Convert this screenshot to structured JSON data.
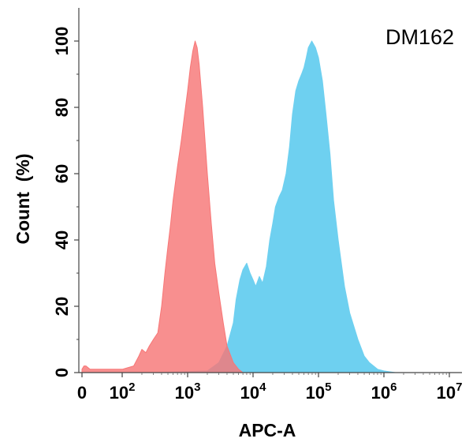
{
  "chart_data": {
    "type": "area",
    "title": "",
    "annotation": "DM162",
    "xlabel": "APC-A",
    "ylabel": "Count  (%)",
    "xscale": "biexponential-log",
    "xlim": [
      0,
      10000000
    ],
    "ylim": [
      0,
      100
    ],
    "grid": false,
    "legend": "none",
    "xticks": [
      {
        "base": "0",
        "exp": ""
      },
      {
        "base": "10",
        "exp": "2"
      },
      {
        "base": "10",
        "exp": "3"
      },
      {
        "base": "10",
        "exp": "4"
      },
      {
        "base": "10",
        "exp": "5"
      },
      {
        "base": "10",
        "exp": "6"
      },
      {
        "base": "10",
        "exp": "7"
      }
    ],
    "yticks": [
      "0",
      "20",
      "40",
      "60",
      "80",
      "100"
    ],
    "series": [
      {
        "color": "#6ed0f0",
        "points": [
          [
            300,
            0
          ],
          [
            2000,
            0.5
          ],
          [
            3000,
            3
          ],
          [
            4000,
            8
          ],
          [
            5000,
            15
          ],
          [
            5500,
            22
          ],
          [
            6300,
            28
          ],
          [
            7000,
            31
          ],
          [
            8000,
            33
          ],
          [
            9000,
            30
          ],
          [
            10000,
            28
          ],
          [
            11000,
            26
          ],
          [
            12500,
            29
          ],
          [
            14000,
            27
          ],
          [
            16000,
            32
          ],
          [
            18000,
            40
          ],
          [
            20000,
            45
          ],
          [
            22000,
            50
          ],
          [
            25000,
            53
          ],
          [
            28000,
            55
          ],
          [
            32000,
            60
          ],
          [
            36000,
            68
          ],
          [
            40000,
            78
          ],
          [
            45000,
            85
          ],
          [
            50000,
            88
          ],
          [
            55000,
            90
          ],
          [
            60000,
            92
          ],
          [
            65000,
            95
          ],
          [
            70000,
            98
          ],
          [
            79000,
            100
          ],
          [
            90000,
            98
          ],
          [
            100000,
            95
          ],
          [
            115000,
            88
          ],
          [
            130000,
            78
          ],
          [
            150000,
            66
          ],
          [
            170000,
            52
          ],
          [
            200000,
            40
          ],
          [
            250000,
            26
          ],
          [
            300000,
            18
          ],
          [
            400000,
            10
          ],
          [
            500000,
            5
          ],
          [
            600000,
            3
          ],
          [
            800000,
            1
          ],
          [
            1000000,
            0.5
          ],
          [
            1500000,
            0
          ]
        ]
      },
      {
        "color": "#f77676",
        "points": [
          [
            0,
            1
          ],
          [
            5,
            2
          ],
          [
            10,
            2
          ],
          [
            20,
            1
          ],
          [
            40,
            1
          ],
          [
            70,
            1
          ],
          [
            100,
            1
          ],
          [
            150,
            2
          ],
          [
            180,
            5
          ],
          [
            200,
            7
          ],
          [
            230,
            6
          ],
          [
            260,
            8
          ],
          [
            300,
            10
          ],
          [
            350,
            12
          ],
          [
            400,
            20
          ],
          [
            450,
            30
          ],
          [
            500,
            38
          ],
          [
            550,
            45
          ],
          [
            600,
            52
          ],
          [
            700,
            62
          ],
          [
            800,
            70
          ],
          [
            900,
            78
          ],
          [
            1000,
            85
          ],
          [
            1100,
            92
          ],
          [
            1200,
            97
          ],
          [
            1300,
            100
          ],
          [
            1400,
            98
          ],
          [
            1500,
            93
          ],
          [
            1700,
            80
          ],
          [
            2000,
            60
          ],
          [
            2300,
            45
          ],
          [
            2600,
            33
          ],
          [
            3000,
            24
          ],
          [
            3500,
            15
          ],
          [
            4000,
            8
          ],
          [
            5000,
            3
          ],
          [
            6000,
            1
          ],
          [
            7000,
            0
          ]
        ]
      }
    ]
  }
}
